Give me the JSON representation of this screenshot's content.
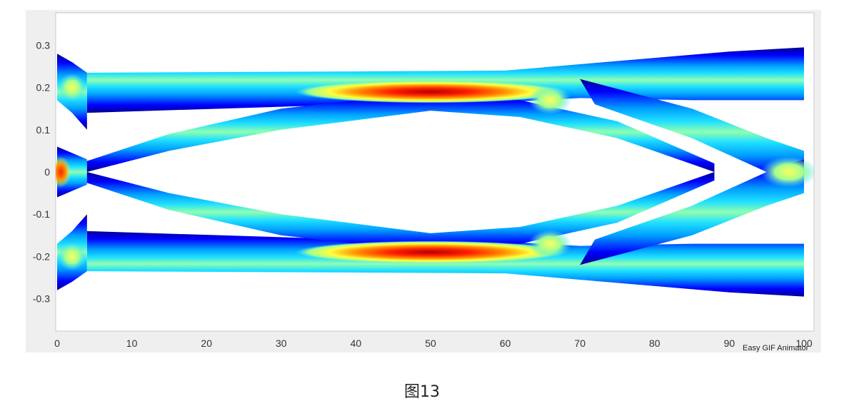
{
  "chart_data": {
    "type": "heatmap",
    "description_free": true,
    "x_ticks": [
      "0",
      "10",
      "20",
      "30",
      "40",
      "50",
      "60",
      "70",
      "80",
      "90",
      "100"
    ],
    "y_ticks": [
      "0.3",
      "0.2",
      "0.1",
      "0",
      "-0.1",
      "-0.2",
      "-0.3"
    ],
    "xlim": [
      0,
      100
    ],
    "ylim": [
      -0.37,
      0.37
    ],
    "colormap": [
      "#00007f",
      "#0000ff",
      "#00bfff",
      "#7fff7f",
      "#ffff00",
      "#ff7f00",
      "#ff0000",
      "#7f0000"
    ],
    "grid": false
  },
  "watermark": "Easy GIF Animator",
  "caption": "图13",
  "colors": {
    "frame_bg": "#efefef",
    "axes_bg": "#ffffff"
  }
}
